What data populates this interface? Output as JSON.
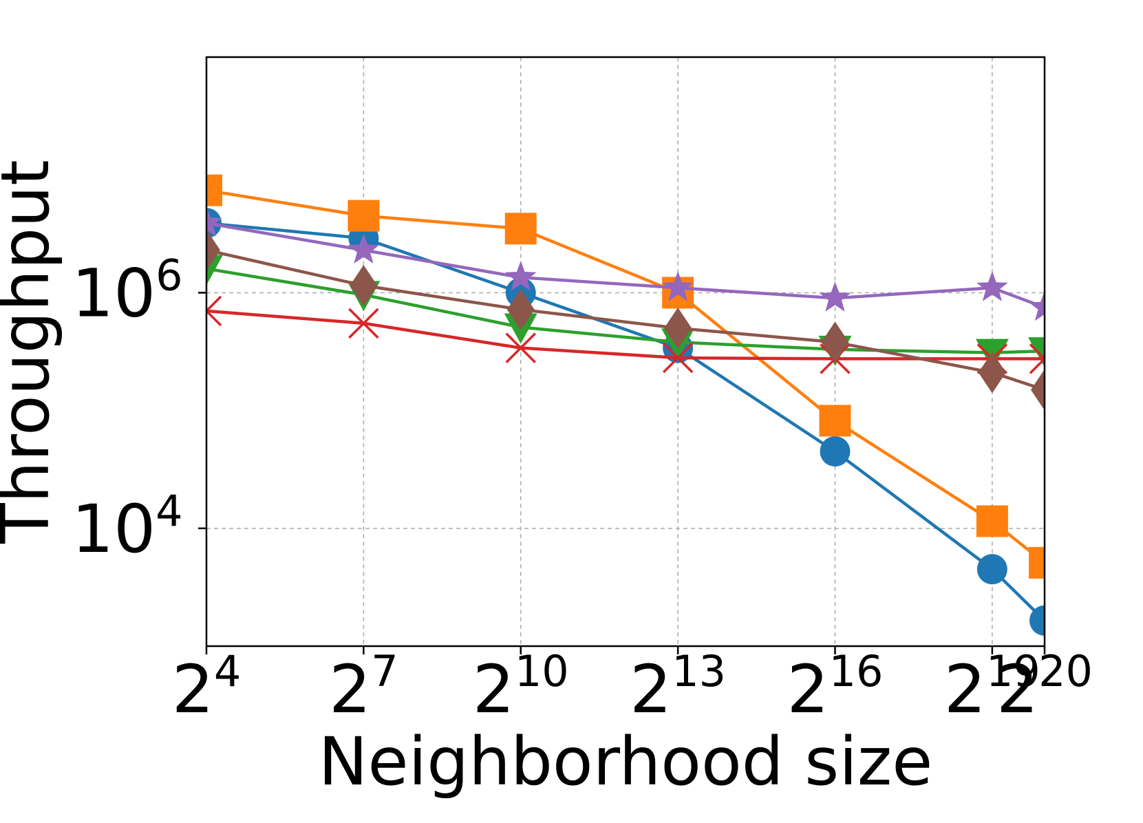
{
  "chart_data": {
    "type": "line",
    "title": "",
    "xlabel": "Neighborhood size",
    "ylabel": "Throughput",
    "xscale": "log2",
    "yscale": "log10",
    "x": [
      4,
      7,
      10,
      13,
      16,
      19,
      20
    ],
    "x_tick_labels": [
      {
        "base": "2",
        "exp": "4"
      },
      {
        "base": "2",
        "exp": "7"
      },
      {
        "base": "2",
        "exp": "10"
      },
      {
        "base": "2",
        "exp": "13"
      },
      {
        "base": "2",
        "exp": "16"
      },
      {
        "base": "2",
        "exp": "19"
      },
      {
        "base": "2",
        "exp": "20"
      }
    ],
    "xlim": [
      4,
      20
    ],
    "ylim": [
      1000,
      100000000
    ],
    "y_ticks": [
      {
        "value": 10000,
        "base": "10",
        "exp": "4"
      },
      {
        "value": 1000000,
        "base": "10",
        "exp": "6"
      }
    ],
    "grid": true,
    "legend": "none",
    "series": [
      {
        "name": "blue",
        "color": "#1f77b4",
        "marker": "circle",
        "values": [
          3900000,
          2900000,
          1000000,
          340000,
          45000,
          4500,
          1650
        ]
      },
      {
        "name": "orange",
        "color": "#ff7f0e",
        "marker": "square",
        "values": [
          7400000,
          4500000,
          3500000,
          1000000,
          82000,
          11500,
          5100
        ]
      },
      {
        "name": "green",
        "color": "#2ca02c",
        "marker": "triangle-down",
        "values": [
          1600000,
          960000,
          510000,
          380000,
          330000,
          310000,
          320000
        ]
      },
      {
        "name": "red",
        "color": "#d62728",
        "marker": "x",
        "values": [
          700000,
          550000,
          340000,
          280000,
          275000,
          275000,
          275000
        ]
      },
      {
        "name": "purple",
        "color": "#9467bd",
        "marker": "star",
        "values": [
          3900000,
          2300000,
          1350000,
          1100000,
          900000,
          1100000,
          750000
        ]
      },
      {
        "name": "brown",
        "color": "#8c564b",
        "marker": "diamond",
        "values": [
          2300000,
          1150000,
          720000,
          500000,
          380000,
          210000,
          150000
        ]
      }
    ]
  }
}
